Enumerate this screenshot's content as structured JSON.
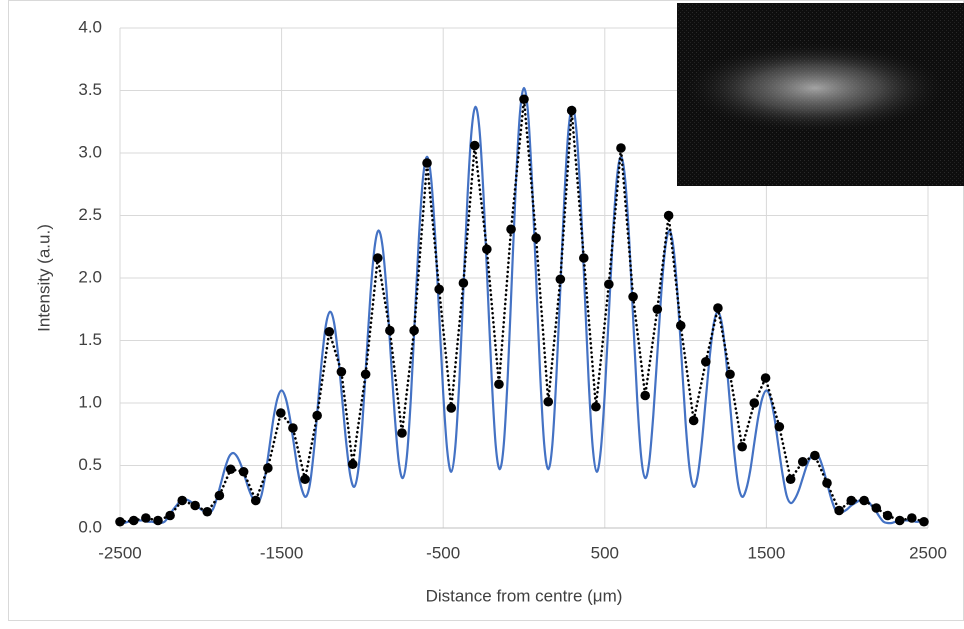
{
  "chart_data": {
    "type": "line",
    "xlabel": "Distance from centre (μm)",
    "ylabel": "Intensity (a.u.)",
    "xlim": [
      -2500,
      2500
    ],
    "xticks": [
      -2500,
      -1500,
      -500,
      500,
      1500,
      2500
    ],
    "ylim": [
      0,
      4
    ],
    "yticks": [
      {
        "value": 0,
        "label": "0.0"
      },
      0.5,
      {
        "value": 1,
        "label": "1.0"
      },
      1.5,
      {
        "value": 2,
        "label": "2.0"
      },
      2.5,
      {
        "value": 3,
        "label": "3.0"
      },
      3.5,
      {
        "value": 4,
        "label": "4.0"
      }
    ],
    "grid": true,
    "series": [
      {
        "color": "#4472c4",
        "style": "solid",
        "markers": false,
        "x": [
          -2500,
          -2475,
          -2450,
          -2425,
          -2400,
          -2375,
          -2350,
          -2325,
          -2300,
          -2275,
          -2250,
          -2225,
          -2200,
          -2175,
          -2150,
          -2125,
          -2100,
          -2075,
          -2050,
          -2025,
          -2000,
          -1975,
          -1950,
          -1925,
          -1900,
          -1875,
          -1850,
          -1825,
          -1800,
          -1775,
          -1750,
          -1725,
          -1700,
          -1675,
          -1650,
          -1625,
          -1600,
          -1575,
          -1550,
          -1525,
          -1500,
          -1475,
          -1450,
          -1425,
          -1400,
          -1375,
          -1350,
          -1325,
          -1300,
          -1275,
          -1250,
          -1225,
          -1200,
          -1175,
          -1150,
          -1125,
          -1100,
          -1075,
          -1050,
          -1025,
          -1000,
          -975,
          -950,
          -925,
          -900,
          -875,
          -850,
          -825,
          -800,
          -775,
          -750,
          -725,
          -700,
          -675,
          -650,
          -625,
          -600,
          -575,
          -550,
          -525,
          -500,
          -475,
          -450,
          -425,
          -400,
          -375,
          -350,
          -325,
          -300,
          -275,
          -250,
          -225,
          -200,
          -175,
          -150,
          -125,
          -100,
          -75,
          -50,
          -25,
          0,
          25,
          50,
          75,
          100,
          125,
          150,
          175,
          200,
          225,
          250,
          275,
          300,
          325,
          350,
          375,
          400,
          425,
          450,
          475,
          500,
          525,
          550,
          575,
          600,
          625,
          650,
          675,
          700,
          725,
          750,
          775,
          800,
          825,
          850,
          875,
          900,
          925,
          950,
          975,
          1000,
          1025,
          1050,
          1075,
          1100,
          1125,
          1150,
          1175,
          1200,
          1225,
          1250,
          1275,
          1300,
          1325,
          1350,
          1375,
          1400,
          1425,
          1450,
          1475,
          1500,
          1525,
          1550,
          1575,
          1600,
          1625,
          1650,
          1675,
          1700,
          1725,
          1750,
          1775,
          1800,
          1825,
          1850,
          1875,
          1900,
          1925,
          1950,
          1975,
          2000,
          2025,
          2050,
          2075,
          2100,
          2125,
          2150,
          2175,
          2200,
          2225,
          2250,
          2275,
          2300,
          2325,
          2350,
          2375,
          2400,
          2425,
          2450,
          2475,
          2500
        ],
        "values": [
          0.04,
          0.04,
          0.05,
          0.05,
          0.06,
          0.06,
          0.06,
          0.05,
          0.05,
          0.04,
          0.04,
          0.05,
          0.09,
          0.14,
          0.18,
          0.22,
          0.23,
          0.22,
          0.2,
          0.18,
          0.15,
          0.13,
          0.12,
          0.15,
          0.24,
          0.36,
          0.48,
          0.57,
          0.6,
          0.57,
          0.5,
          0.4,
          0.3,
          0.23,
          0.2,
          0.26,
          0.43,
          0.65,
          0.88,
          1.04,
          1.1,
          1.04,
          0.89,
          0.68,
          0.46,
          0.31,
          0.25,
          0.35,
          0.62,
          0.99,
          1.36,
          1.63,
          1.73,
          1.64,
          1.38,
          1.03,
          0.68,
          0.42,
          0.33,
          0.47,
          0.84,
          1.36,
          1.87,
          2.24,
          2.38,
          2.25,
          1.89,
          1.39,
          0.9,
          0.53,
          0.4,
          0.57,
          1.04,
          1.69,
          2.33,
          2.8,
          2.97,
          2.8,
          2.34,
          1.71,
          1.08,
          0.62,
          0.45,
          0.65,
          1.18,
          1.91,
          2.64,
          3.17,
          3.37,
          3.18,
          2.65,
          1.92,
          1.2,
          0.66,
          0.47,
          0.67,
          1.23,
          2.0,
          2.76,
          3.32,
          3.52,
          3.32,
          2.76,
          2.0,
          1.23,
          0.67,
          0.47,
          0.66,
          1.2,
          1.92,
          2.65,
          3.18,
          3.37,
          3.17,
          2.64,
          1.91,
          1.18,
          0.65,
          0.45,
          0.62,
          1.08,
          1.71,
          2.34,
          2.8,
          2.97,
          2.8,
          2.33,
          1.69,
          1.04,
          0.57,
          0.4,
          0.53,
          0.9,
          1.39,
          1.89,
          2.25,
          2.38,
          2.24,
          1.87,
          1.36,
          0.84,
          0.47,
          0.33,
          0.42,
          0.68,
          1.03,
          1.38,
          1.64,
          1.73,
          1.63,
          1.36,
          0.99,
          0.62,
          0.35,
          0.25,
          0.31,
          0.46,
          0.68,
          0.89,
          1.04,
          1.1,
          1.04,
          0.88,
          0.65,
          0.43,
          0.26,
          0.2,
          0.23,
          0.3,
          0.4,
          0.5,
          0.57,
          0.6,
          0.57,
          0.48,
          0.36,
          0.24,
          0.15,
          0.12,
          0.13,
          0.15,
          0.18,
          0.2,
          0.22,
          0.23,
          0.22,
          0.18,
          0.14,
          0.09,
          0.05,
          0.04,
          0.04,
          0.05,
          0.05,
          0.06,
          0.06,
          0.06,
          0.05,
          0.05,
          0.04,
          0.04
        ]
      },
      {
        "color": "#000000",
        "style": "dotted",
        "markers": true,
        "x": [
          -2500,
          -2415,
          -2340,
          -2265,
          -2190,
          -2115,
          -2035,
          -1960,
          -1885,
          -1815,
          -1735,
          -1660,
          -1585,
          -1505,
          -1430,
          -1355,
          -1280,
          -1205,
          -1130,
          -1060,
          -980,
          -905,
          -830,
          -755,
          -680,
          -600,
          -525,
          -450,
          -375,
          -305,
          -230,
          -155,
          -80,
          0,
          75,
          150,
          225,
          295,
          370,
          445,
          525,
          600,
          675,
          750,
          825,
          895,
          970,
          1050,
          1125,
          1200,
          1275,
          1350,
          1425,
          1495,
          1580,
          1650,
          1725,
          1800,
          1875,
          1950,
          2025,
          2105,
          2180,
          2250,
          2325,
          2400,
          2475
        ],
        "values": [
          0.05,
          0.06,
          0.08,
          0.06,
          0.1,
          0.22,
          0.18,
          0.13,
          0.26,
          0.47,
          0.45,
          0.22,
          0.48,
          0.92,
          0.8,
          0.39,
          0.9,
          1.57,
          1.25,
          0.51,
          1.23,
          2.16,
          1.58,
          0.76,
          1.58,
          2.92,
          1.91,
          0.96,
          1.96,
          3.06,
          2.23,
          1.15,
          2.39,
          3.43,
          2.32,
          1.01,
          1.99,
          3.34,
          2.16,
          0.97,
          1.95,
          3.04,
          1.85,
          1.06,
          1.75,
          2.5,
          1.62,
          0.86,
          1.33,
          1.76,
          1.23,
          0.65,
          1.0,
          1.2,
          0.81,
          0.39,
          0.53,
          0.58,
          0.36,
          0.14,
          0.22,
          0.22,
          0.16,
          0.1,
          0.06,
          0.08,
          0.05
        ]
      }
    ]
  }
}
